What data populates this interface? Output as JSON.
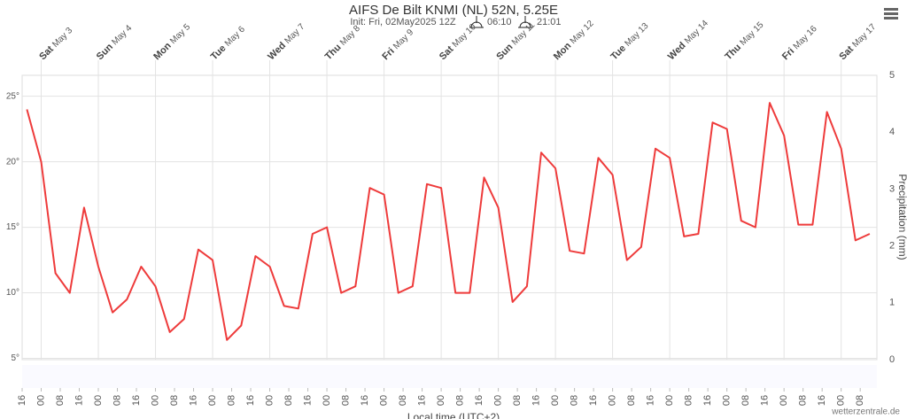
{
  "chart_data": {
    "type": "line",
    "title": "AIFS De Bilt KNMI (NL) 52N, 5.25E",
    "subtitle": "Init: Fri, 02May2025 12Z",
    "sunrise": "06:10",
    "sunset": "21:01",
    "x_label": "Local time (UTC+2)",
    "y2_label": "Precipitation (mm)",
    "credit": "wetterzentrale.de",
    "color": "#ee3b3b",
    "grid": true,
    "x": [
      2,
      8,
      14,
      20,
      26,
      32,
      38,
      44,
      50,
      56,
      62,
      68,
      74,
      80,
      86,
      92,
      98,
      104,
      110,
      116,
      122,
      128,
      134,
      140,
      146,
      152,
      158,
      164,
      170,
      176,
      182,
      188,
      194,
      200,
      206,
      212,
      218,
      224,
      230,
      236,
      242,
      248,
      254,
      260,
      266,
      272,
      278,
      284,
      290,
      296,
      302,
      308,
      314,
      320,
      326,
      332,
      338,
      344,
      350,
      356
    ],
    "values": [
      24,
      20,
      11.5,
      10,
      16.5,
      12,
      8.5,
      9.5,
      12,
      10.5,
      7,
      8,
      13.3,
      12.5,
      6.4,
      7.5,
      12.8,
      12,
      9,
      8.8,
      14.5,
      15,
      10,
      10.5,
      18,
      17.5,
      10,
      10.5,
      18.3,
      18,
      10,
      10,
      18.8,
      16.5,
      9.3,
      10.5,
      20.7,
      19.5,
      13.2,
      13,
      20.3,
      19,
      12.5,
      13.5,
      21,
      20.3,
      14.3,
      14.5,
      23,
      22.5,
      15.5,
      15,
      24.5,
      22,
      15.2,
      15.2,
      23.8,
      21,
      14,
      14.5
    ],
    "xlim": [
      0,
      359
    ],
    "xticks": [
      {
        "value": 0,
        "label": "16"
      },
      {
        "value": 8,
        "label": "00"
      },
      {
        "value": 16,
        "label": "08"
      },
      {
        "value": 24,
        "label": "16"
      },
      {
        "value": 32,
        "label": "00"
      },
      {
        "value": 40,
        "label": "08"
      },
      {
        "value": 48,
        "label": "16"
      },
      {
        "value": 56,
        "label": "00"
      },
      {
        "value": 64,
        "label": "08"
      },
      {
        "value": 72,
        "label": "16"
      },
      {
        "value": 80,
        "label": "00"
      },
      {
        "value": 88,
        "label": "08"
      },
      {
        "value": 96,
        "label": "16"
      },
      {
        "value": 104,
        "label": "00"
      },
      {
        "value": 112,
        "label": "08"
      },
      {
        "value": 120,
        "label": "16"
      },
      {
        "value": 128,
        "label": "00"
      },
      {
        "value": 136,
        "label": "08"
      },
      {
        "value": 144,
        "label": "16"
      },
      {
        "value": 152,
        "label": "00"
      },
      {
        "value": 160,
        "label": "08"
      },
      {
        "value": 168,
        "label": "16"
      },
      {
        "value": 176,
        "label": "00"
      },
      {
        "value": 184,
        "label": "08"
      },
      {
        "value": 192,
        "label": "16"
      },
      {
        "value": 200,
        "label": "00"
      },
      {
        "value": 208,
        "label": "08"
      },
      {
        "value": 216,
        "label": "16"
      },
      {
        "value": 224,
        "label": "00"
      },
      {
        "value": 232,
        "label": "08"
      },
      {
        "value": 240,
        "label": "16"
      },
      {
        "value": 248,
        "label": "00"
      },
      {
        "value": 256,
        "label": "08"
      },
      {
        "value": 264,
        "label": "16"
      },
      {
        "value": 272,
        "label": "00"
      },
      {
        "value": 280,
        "label": "08"
      },
      {
        "value": 288,
        "label": "16"
      },
      {
        "value": 296,
        "label": "00"
      },
      {
        "value": 304,
        "label": "08"
      },
      {
        "value": 312,
        "label": "16"
      },
      {
        "value": 320,
        "label": "00"
      },
      {
        "value": 328,
        "label": "08"
      },
      {
        "value": 336,
        "label": "16"
      },
      {
        "value": 344,
        "label": "00"
      },
      {
        "value": 352,
        "label": "08"
      }
    ],
    "day_ticks": [
      {
        "value": 8,
        "day": "Sat",
        "date": "May 3"
      },
      {
        "value": 32,
        "day": "Sun",
        "date": "May 4"
      },
      {
        "value": 56,
        "day": "Mon",
        "date": "May 5"
      },
      {
        "value": 80,
        "day": "Tue",
        "date": "May 6"
      },
      {
        "value": 104,
        "day": "Wed",
        "date": "May 7"
      },
      {
        "value": 128,
        "day": "Thu",
        "date": "May 8"
      },
      {
        "value": 152,
        "day": "Fri",
        "date": "May 9"
      },
      {
        "value": 176,
        "day": "Sat",
        "date": "May 10"
      },
      {
        "value": 200,
        "day": "Sun",
        "date": "May 11"
      },
      {
        "value": 224,
        "day": "Mon",
        "date": "May 12"
      },
      {
        "value": 248,
        "day": "Tue",
        "date": "May 13"
      },
      {
        "value": 272,
        "day": "Wed",
        "date": "May 14"
      },
      {
        "value": 296,
        "day": "Thu",
        "date": "May 15"
      },
      {
        "value": 320,
        "day": "Fri",
        "date": "May 16"
      },
      {
        "value": 344,
        "day": "Sat",
        "date": "May 17"
      }
    ],
    "ylim": [
      4.9,
      26.6
    ],
    "yticks": [
      {
        "value": 5,
        "label": "5°"
      },
      {
        "value": 10,
        "label": "10°"
      },
      {
        "value": 15,
        "label": "15°"
      },
      {
        "value": 20,
        "label": "20°"
      },
      {
        "value": 25,
        "label": "25°"
      }
    ],
    "y2lim": [
      0,
      5
    ],
    "y2ticks": [
      0,
      1,
      2,
      3,
      4,
      5
    ]
  }
}
